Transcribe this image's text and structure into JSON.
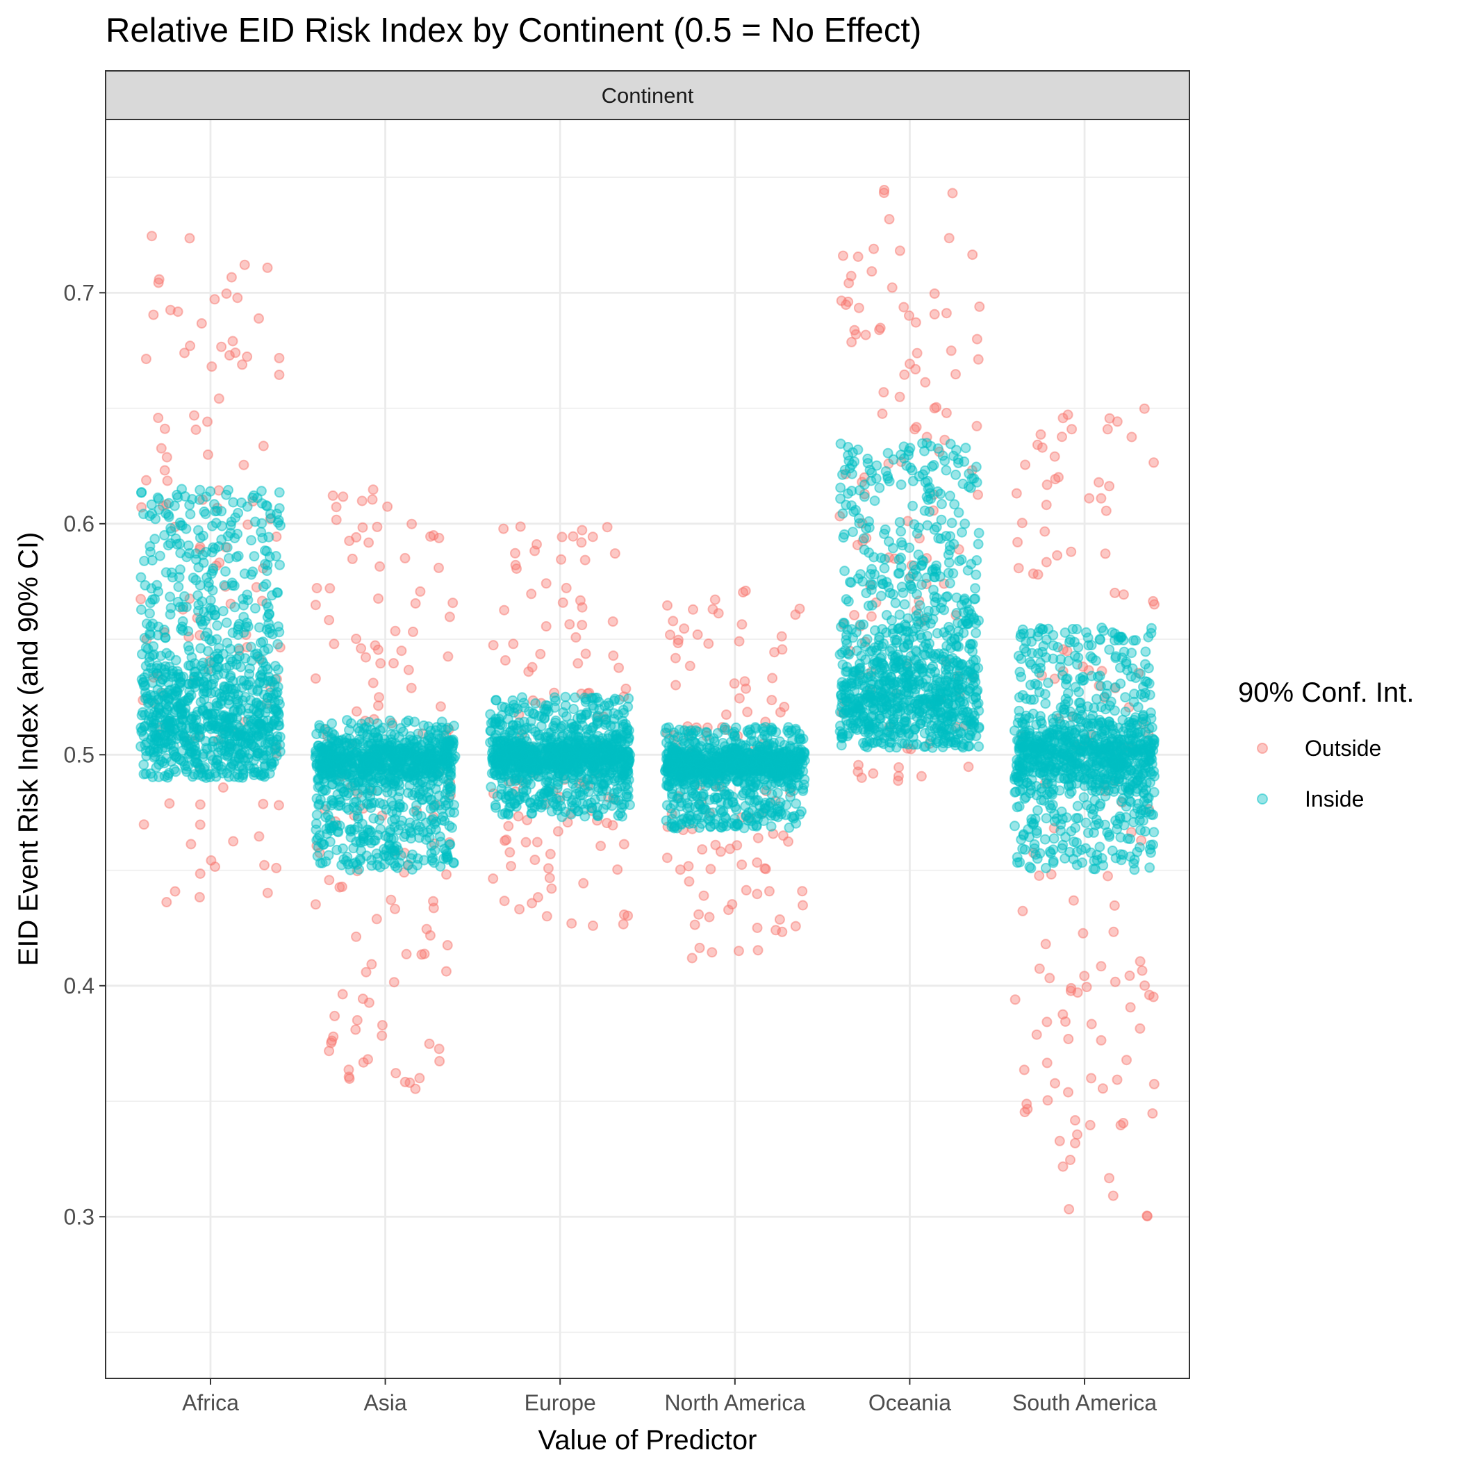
{
  "chart_data": {
    "type": "scatter",
    "title": "Relative EID Risk Index by Continent (0.5 = No Effect)",
    "facet_strip": "Continent",
    "xlabel": "Value of Predictor",
    "ylabel": "EID Event Risk Index (and 90% CI)",
    "categories": [
      "Africa",
      "Asia",
      "Europe",
      "North America",
      "Oceania",
      "South America"
    ],
    "ylim": [
      0.23,
      0.775
    ],
    "y_ticks": [
      0.3,
      0.4,
      0.5,
      0.6,
      0.7
    ],
    "y_tick_labels": [
      "0.3",
      "0.4",
      "0.5",
      "0.6",
      "0.7"
    ],
    "grid": true,
    "jitter": "horizontal, approx ±0.4 category width",
    "legend": {
      "title": "90% Conf. Int.",
      "position": "right",
      "entries": [
        {
          "label": "Outside",
          "color": "#F8766D"
        },
        {
          "label": "Inside",
          "color": "#00BFC4"
        }
      ]
    },
    "colors": {
      "Outside": "#F8766D",
      "Inside": "#00BFC4"
    },
    "point_opacity": 0.4,
    "series": [
      {
        "category": "Africa",
        "ci": "Inside",
        "n": 950,
        "range": [
          0.49,
          0.615
        ],
        "center": 0.51,
        "spread": 0.045
      },
      {
        "category": "Africa",
        "ci": "Outside",
        "n": 115,
        "range": [
          0.435,
          0.725
        ]
      },
      {
        "category": "Asia",
        "ci": "Inside",
        "n": 950,
        "range": [
          0.45,
          0.515
        ],
        "center": 0.497,
        "spread": 0.016
      },
      {
        "category": "Asia",
        "ci": "Outside",
        "n": 130,
        "range": [
          0.355,
          0.615
        ]
      },
      {
        "category": "Europe",
        "ci": "Inside",
        "n": 950,
        "range": [
          0.473,
          0.525
        ],
        "center": 0.499,
        "spread": 0.013
      },
      {
        "category": "Europe",
        "ci": "Outside",
        "n": 110,
        "range": [
          0.417,
          0.6
        ]
      },
      {
        "category": "North America",
        "ci": "Inside",
        "n": 950,
        "range": [
          0.468,
          0.512
        ],
        "center": 0.496,
        "spread": 0.011
      },
      {
        "category": "North America",
        "ci": "Outside",
        "n": 110,
        "range": [
          0.41,
          0.572
        ]
      },
      {
        "category": "Oceania",
        "ci": "Inside",
        "n": 950,
        "range": [
          0.503,
          0.635
        ],
        "center": 0.52,
        "spread": 0.045
      },
      {
        "category": "Oceania",
        "ci": "Outside",
        "n": 120,
        "range": [
          0.484,
          0.745
        ]
      },
      {
        "category": "South America",
        "ci": "Inside",
        "n": 950,
        "range": [
          0.45,
          0.555
        ],
        "center": 0.5,
        "spread": 0.022
      },
      {
        "category": "South America",
        "ci": "Outside",
        "n": 135,
        "range": [
          0.298,
          0.657
        ]
      }
    ]
  }
}
